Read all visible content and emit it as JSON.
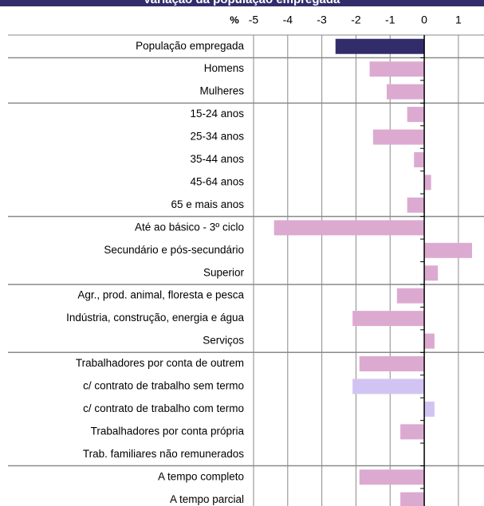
{
  "header": {
    "title": "Variação da população empregada",
    "background_color": "#332c6b"
  },
  "chart_data": {
    "type": "bar",
    "orientation": "horizontal",
    "unit_label": "%",
    "xlim": [
      -5,
      2
    ],
    "x_ticks": [
      -5,
      -4,
      -3,
      -2,
      -1,
      0,
      1,
      2
    ],
    "grid": true,
    "categories": [
      "População empregada",
      "Homens",
      "Mulheres",
      "15-24 anos",
      "25-34 anos",
      "35-44 anos",
      "45-64 anos",
      "65 e mais anos",
      "Até ao básico - 3º ciclo",
      "Secundário e pós-secundário",
      "Superior",
      "Agr., prod. animal, floresta e pesca",
      "Indústria, construção, energia e água",
      "Serviços",
      "Trabalhadores por conta de outrem",
      "c/ contrato de trabalho sem termo",
      "c/ contrato de trabalho com termo",
      "Trabalhadores por conta própria",
      "Trab. familiares não remunerados",
      "A tempo completo",
      "A tempo parcial"
    ],
    "values": [
      -2.6,
      -1.6,
      -1.1,
      -0.5,
      -1.5,
      -0.3,
      0.2,
      -0.5,
      -4.4,
      1.4,
      0.4,
      -0.8,
      -2.1,
      0.3,
      -1.9,
      -2.1,
      0.3,
      -0.7,
      0.0,
      -1.9,
      -0.7
    ],
    "group_starts": [
      1,
      3,
      8,
      11,
      14,
      19
    ],
    "bar_colors": {
      "total": "#332c6b",
      "default": "#dcaad0",
      "highlight": "#d2c4f2"
    },
    "bar_color_keys": [
      "total",
      "default",
      "default",
      "default",
      "default",
      "default",
      "default",
      "default",
      "default",
      "default",
      "default",
      "default",
      "default",
      "default",
      "default",
      "highlight",
      "highlight",
      "default",
      "default",
      "default",
      "default"
    ]
  }
}
